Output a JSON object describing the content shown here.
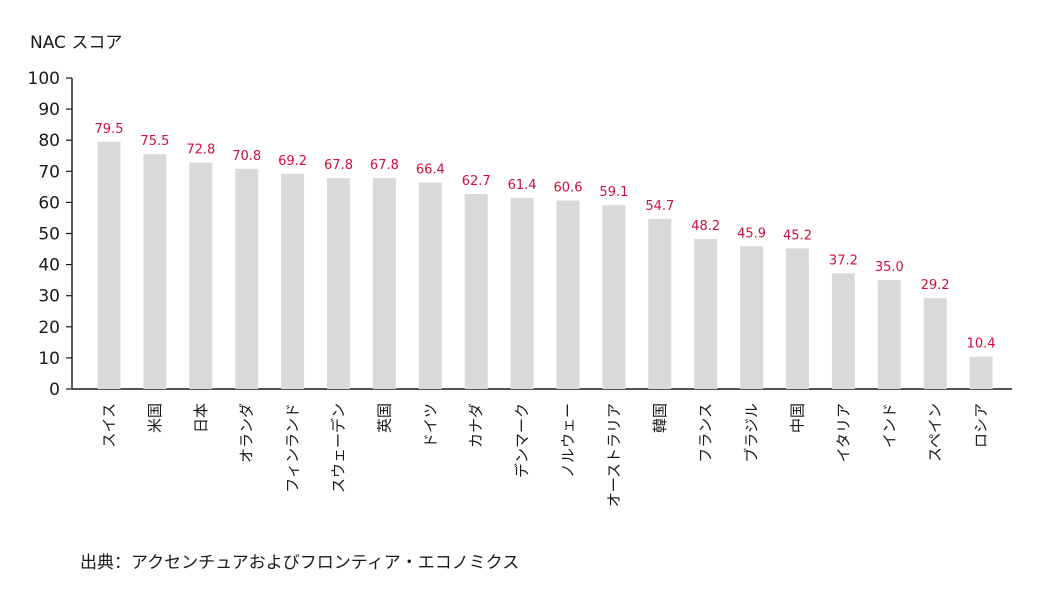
{
  "chart_data": {
    "type": "bar",
    "ylabel": "NAC スコア",
    "ylim": [
      0,
      100
    ],
    "yticks": [
      0,
      10,
      20,
      30,
      40,
      50,
      60,
      70,
      80,
      90,
      100
    ],
    "categories": [
      "スイス",
      "米国",
      "日本",
      "オランダ",
      "フィンランド",
      "スウェーデン",
      "英国",
      "ドイツ",
      "カナダ",
      "デンマーク",
      "ノルウェー",
      "オーストラリア",
      "韓国",
      "フランス",
      "ブラジル",
      "中国",
      "イタリア",
      "インド",
      "スペイン",
      "ロシア"
    ],
    "values": [
      79.5,
      75.5,
      72.8,
      70.8,
      69.2,
      67.8,
      67.8,
      66.4,
      62.7,
      61.4,
      60.6,
      59.1,
      54.7,
      48.2,
      45.9,
      45.2,
      37.2,
      35.0,
      29.2,
      10.4
    ],
    "value_labels": [
      "79.5",
      "75.5",
      "72.8",
      "70.8",
      "69.2",
      "67.8",
      "67.8",
      "66.4",
      "62.7",
      "61.4",
      "60.6",
      "59.1",
      "54.7",
      "48.2",
      "45.9",
      "45.2",
      "37.2",
      "35.0",
      "29.2",
      "10.4"
    ],
    "grid": false,
    "bar_color": "#d9d9d7",
    "label_color": "#d0103a"
  },
  "source": "出典：アクセンチュアおよびフロンティア・エコノミクス"
}
